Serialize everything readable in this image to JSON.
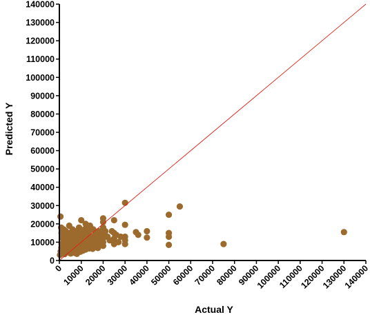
{
  "chart_data": {
    "type": "scatter",
    "title": "",
    "xlabel": "Actual Y",
    "ylabel": "Predicted Y",
    "xlim": [
      0,
      140000
    ],
    "ylim": [
      0,
      140000
    ],
    "xticks": [
      0,
      10000,
      20000,
      30000,
      40000,
      50000,
      60000,
      70000,
      80000,
      90000,
      100000,
      110000,
      120000,
      130000,
      140000
    ],
    "yticks": [
      0,
      10000,
      20000,
      30000,
      40000,
      50000,
      60000,
      70000,
      80000,
      90000,
      100000,
      110000,
      120000,
      130000,
      140000
    ],
    "grid": false,
    "legend": "none",
    "colors": {
      "points": "#9c6a2c",
      "reference_line": "#e0201b",
      "axis": "#000000"
    },
    "reference_line": {
      "from": [
        0,
        0
      ],
      "to": [
        140000,
        140000
      ]
    },
    "points": [
      [
        500,
        24000
      ],
      [
        800,
        18000
      ],
      [
        1000,
        15000
      ],
      [
        1500,
        12000
      ],
      [
        2000,
        17000
      ],
      [
        2500,
        14000
      ],
      [
        3000,
        16000
      ],
      [
        3500,
        11000
      ],
      [
        4000,
        13000
      ],
      [
        4500,
        19000
      ],
      [
        5000,
        15000
      ],
      [
        5500,
        12000
      ],
      [
        6000,
        17000
      ],
      [
        6500,
        10000
      ],
      [
        7000,
        14000
      ],
      [
        7500,
        16000
      ],
      [
        8000,
        11000
      ],
      [
        8500,
        13000
      ],
      [
        9000,
        18000
      ],
      [
        9500,
        12000
      ],
      [
        10000,
        22000
      ],
      [
        10500,
        15000
      ],
      [
        11000,
        9000
      ],
      [
        11500,
        17000
      ],
      [
        12000,
        20000
      ],
      [
        12500,
        14000
      ],
      [
        13000,
        11000
      ],
      [
        13500,
        16000
      ],
      [
        14000,
        19000
      ],
      [
        14500,
        13000
      ],
      [
        15000,
        10000
      ],
      [
        15500,
        17000
      ],
      [
        16000,
        12000
      ],
      [
        16500,
        15000
      ],
      [
        17000,
        14000
      ],
      [
        17500,
        11000
      ],
      [
        18000,
        16000
      ],
      [
        18500,
        13000
      ],
      [
        19000,
        9000
      ],
      [
        19500,
        12000
      ],
      [
        20000,
        21000
      ],
      [
        20000,
        23000
      ],
      [
        20000,
        18000
      ],
      [
        20000,
        15000
      ],
      [
        20000,
        14000
      ],
      [
        20000,
        12000
      ],
      [
        20000,
        10000
      ],
      [
        20000,
        8000
      ],
      [
        21000,
        16000
      ],
      [
        22000,
        13000
      ],
      [
        23000,
        11000
      ],
      [
        24000,
        16000
      ],
      [
        25000,
        22000
      ],
      [
        25000,
        15000
      ],
      [
        25000,
        12000
      ],
      [
        25000,
        9000
      ],
      [
        26000,
        14000
      ],
      [
        27000,
        10000
      ],
      [
        28000,
        13000
      ],
      [
        30000,
        31500
      ],
      [
        30000,
        19500
      ],
      [
        30000,
        13000
      ],
      [
        30000,
        11000
      ],
      [
        30000,
        9000
      ],
      [
        35000,
        15500
      ],
      [
        36000,
        14000
      ],
      [
        40000,
        16000
      ],
      [
        40000,
        12500
      ],
      [
        50000,
        25000
      ],
      [
        50000,
        15000
      ],
      [
        50000,
        13000
      ],
      [
        50000,
        8500
      ],
      [
        55000,
        29500
      ],
      [
        75000,
        9000
      ],
      [
        130000,
        15500
      ],
      [
        300,
        3000
      ],
      [
        600,
        5000
      ],
      [
        900,
        7000
      ],
      [
        1200,
        4000
      ],
      [
        1600,
        6000
      ],
      [
        2000,
        8000
      ],
      [
        2400,
        3500
      ],
      [
        2800,
        9000
      ],
      [
        3200,
        5500
      ],
      [
        3600,
        7500
      ],
      [
        4000,
        4500
      ],
      [
        4400,
        8500
      ],
      [
        4800,
        6500
      ],
      [
        5200,
        3800
      ],
      [
        5600,
        9500
      ],
      [
        6000,
        5200
      ],
      [
        6400,
        7200
      ],
      [
        6800,
        4200
      ],
      [
        7200,
        8800
      ],
      [
        7600,
        6200
      ],
      [
        8000,
        3600
      ],
      [
        8400,
        9200
      ],
      [
        8800,
        5800
      ],
      [
        9200,
        7800
      ],
      [
        9600,
        4800
      ],
      [
        10000,
        8200
      ],
      [
        10400,
        6800
      ],
      [
        10800,
        5400
      ],
      [
        11200,
        9800
      ],
      [
        11600,
        7400
      ],
      [
        12000,
        6000
      ],
      [
        12400,
        8600
      ],
      [
        12800,
        7000
      ],
      [
        13200,
        9400
      ],
      [
        13600,
        6600
      ],
      [
        14000,
        8000
      ],
      [
        14400,
        7200
      ],
      [
        14800,
        9000
      ],
      [
        15200,
        6400
      ],
      [
        15600,
        8400
      ],
      [
        16000,
        10000
      ],
      [
        16400,
        7600
      ],
      [
        16800,
        9600
      ],
      [
        17200,
        8800
      ],
      [
        17600,
        6800
      ],
      [
        18000,
        10200
      ],
      [
        18400,
        8200
      ],
      [
        18800,
        9200
      ],
      [
        1000,
        9000
      ],
      [
        1800,
        10000
      ],
      [
        2600,
        11000
      ],
      [
        3400,
        9500
      ],
      [
        4200,
        10500
      ],
      [
        5000,
        9000
      ],
      [
        5800,
        11500
      ],
      [
        6600,
        10800
      ],
      [
        7400,
        9800
      ],
      [
        8200,
        12500
      ],
      [
        9000,
        10200
      ],
      [
        9800,
        11800
      ],
      [
        10600,
        12800
      ],
      [
        11400,
        10600
      ],
      [
        12200,
        13200
      ],
      [
        13000,
        12200
      ],
      [
        1400,
        13500
      ],
      [
        2200,
        12500
      ],
      [
        3000,
        13800
      ],
      [
        3800,
        14500
      ],
      [
        4600,
        12800
      ],
      [
        5400,
        13600
      ],
      [
        6200,
        14800
      ],
      [
        7000,
        12200
      ],
      [
        7800,
        13800
      ],
      [
        8600,
        15200
      ],
      [
        9400,
        14200
      ],
      [
        10200,
        13600
      ],
      [
        11000,
        16200
      ],
      [
        11800,
        14600
      ],
      [
        12600,
        15800
      ],
      [
        13400,
        17400
      ]
    ]
  }
}
